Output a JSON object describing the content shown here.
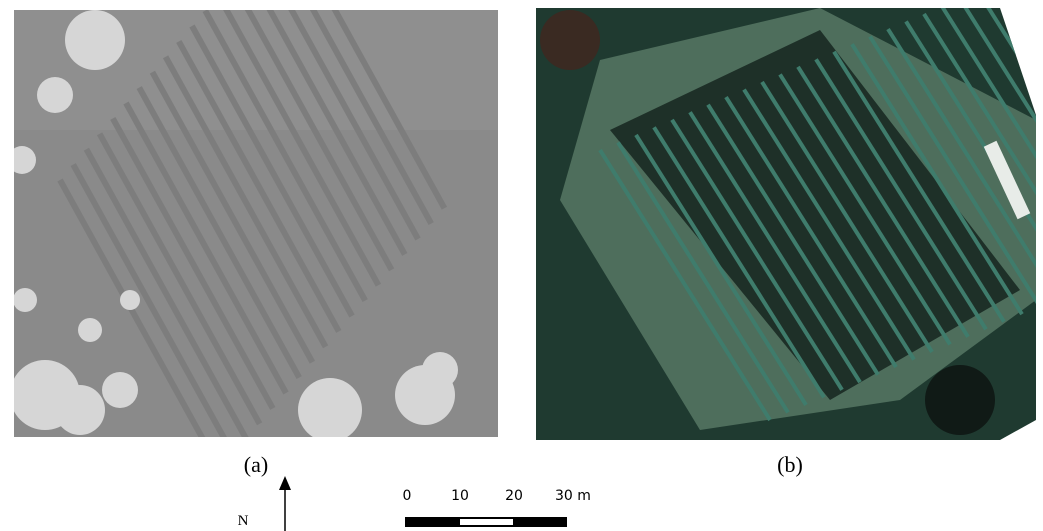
{
  "panels": [
    {
      "caption": "(a)"
    },
    {
      "caption": "(b)"
    }
  ],
  "north_arrow": {
    "label": "N"
  },
  "scale_bar": {
    "labels": [
      "0",
      "10",
      "20",
      "30 m"
    ]
  }
}
